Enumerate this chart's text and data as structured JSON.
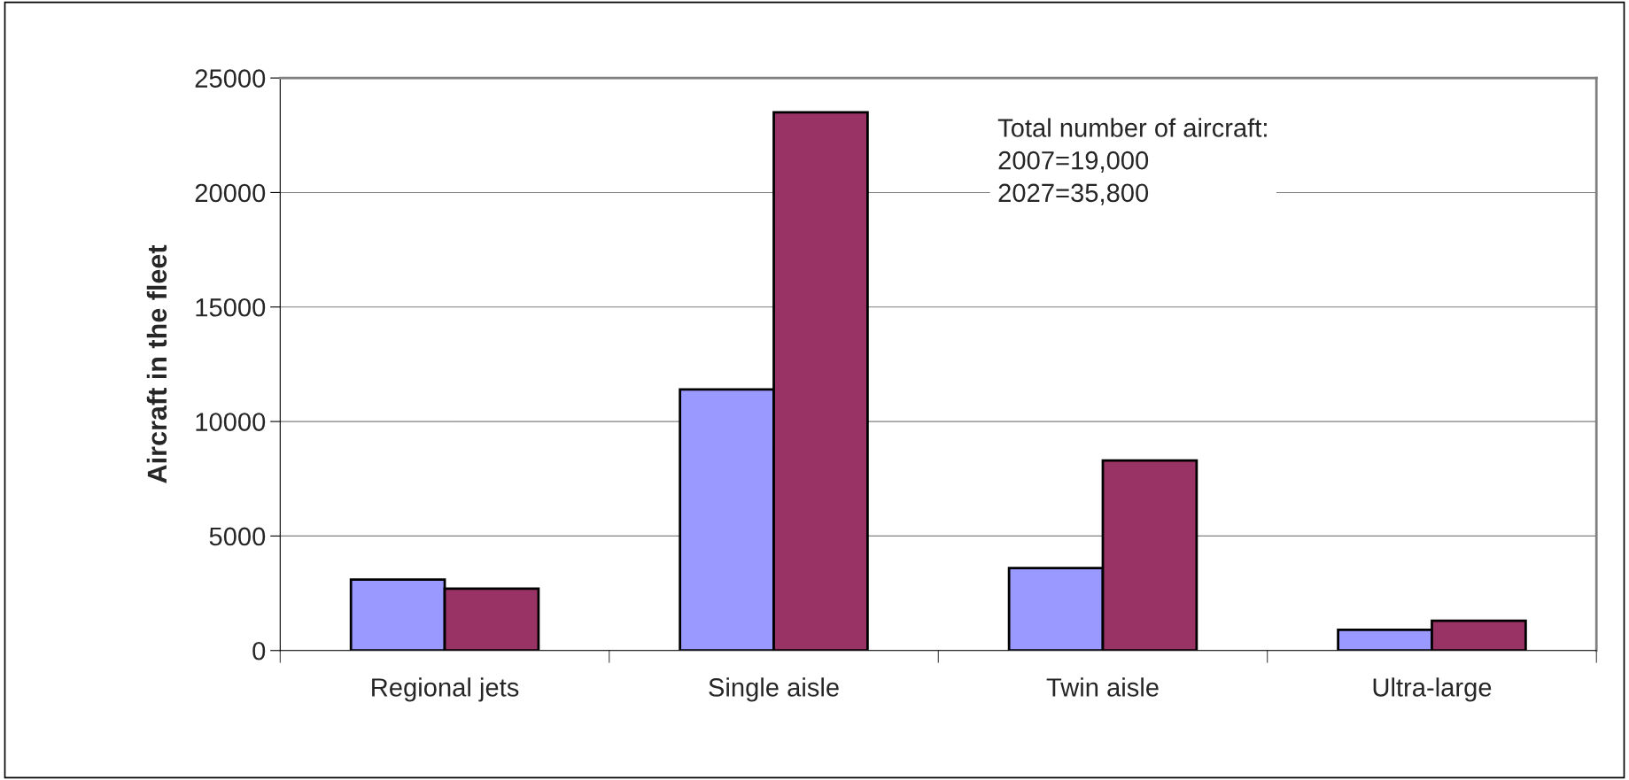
{
  "chart_data": {
    "type": "bar",
    "ylabel": "Aircraft in the fleet",
    "categories": [
      "Regional jets",
      "Single aisle",
      "Twin aisle",
      "Ultra-large"
    ],
    "series": [
      {
        "color": "#9999ff",
        "values": [
          3100,
          11400,
          3600,
          900
        ]
      },
      {
        "color": "#993366",
        "values": [
          2700,
          23500,
          8300,
          1300
        ]
      }
    ],
    "ylim": [
      0,
      25000
    ],
    "yticks": [
      0,
      5000,
      10000,
      15000,
      20000,
      25000
    ],
    "grid": "y",
    "annotations": [
      "Total number of aircraft:\n2007=19,000\n2027=35,800"
    ]
  }
}
